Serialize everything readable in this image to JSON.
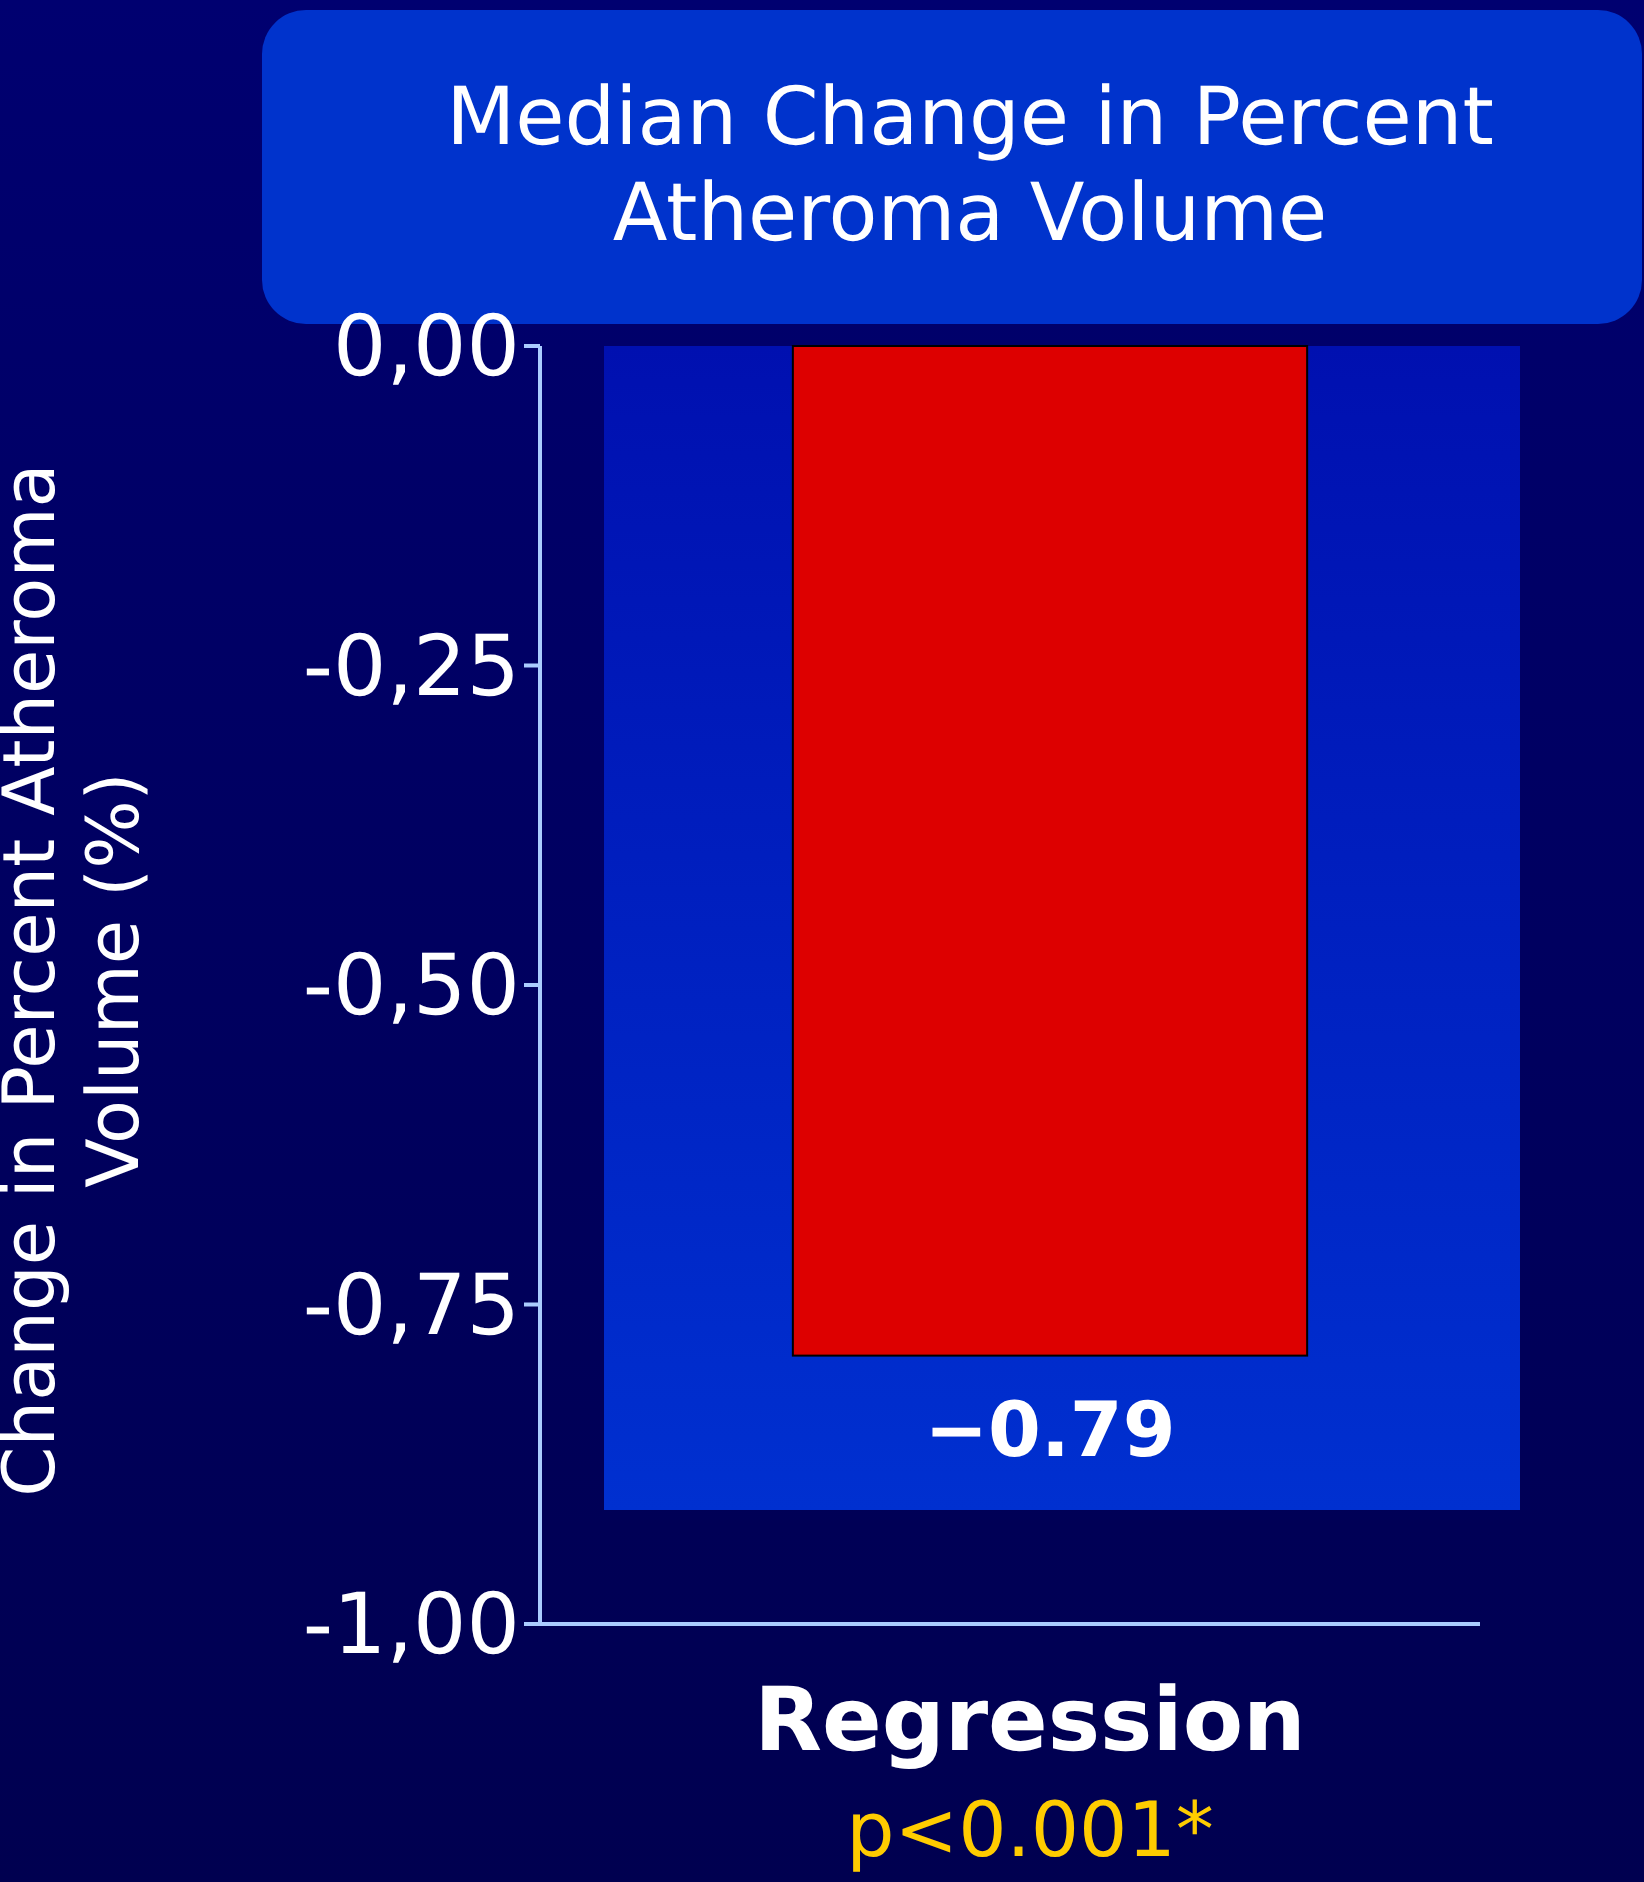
{
  "chart_data": {
    "type": "bar",
    "title": "Median Change in Percent Atheroma Volume",
    "ylabel": "Change in Percent Atheroma Volume (%)",
    "categories": [
      "Regression"
    ],
    "values": [
      -0.79
    ],
    "value_labels": [
      "−0.79"
    ],
    "color": "#dd0000",
    "ylim": [
      -1,
      0
    ],
    "yticks": [
      {
        "value": 0,
        "label": "0,00"
      },
      {
        "value": -0.25,
        "label": "-0,25"
      },
      {
        "value": -0.5,
        "label": "-0,50"
      },
      {
        "value": -0.75,
        "label": "-0,75"
      },
      {
        "value": -1,
        "label": "-1,00"
      }
    ],
    "annotations": [
      "p<0.001*"
    ],
    "grid": false
  }
}
